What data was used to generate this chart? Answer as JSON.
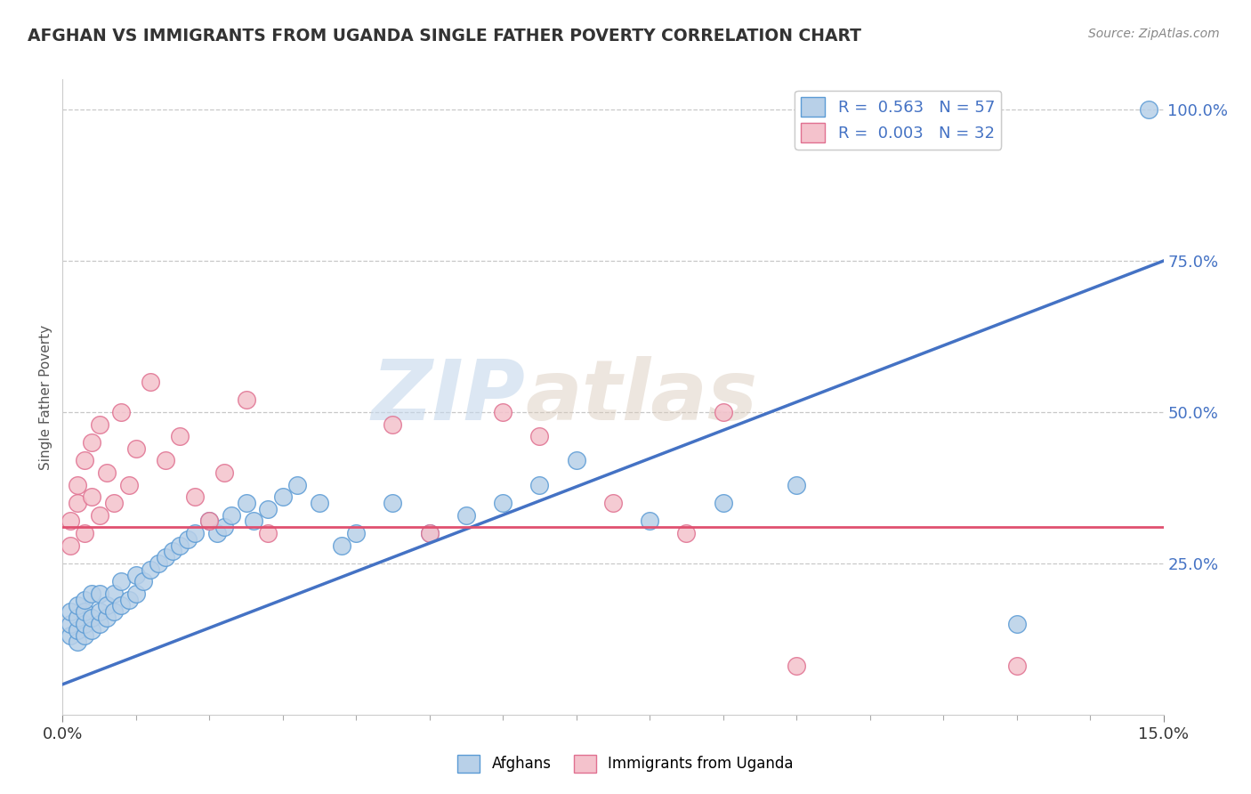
{
  "title": "AFGHAN VS IMMIGRANTS FROM UGANDA SINGLE FATHER POVERTY CORRELATION CHART",
  "source": "Source: ZipAtlas.com",
  "ylabel": "Single Father Poverty",
  "xlim": [
    0.0,
    0.15
  ],
  "ylim": [
    0.0,
    1.05
  ],
  "xticks": [
    0.0,
    0.15
  ],
  "xticklabels": [
    "0.0%",
    "15.0%"
  ],
  "yticks": [
    0.25,
    0.5,
    0.75,
    1.0
  ],
  "yticklabels": [
    "25.0%",
    "50.0%",
    "75.0%",
    "100.0%"
  ],
  "afghan_color": "#b8d0e8",
  "afghan_edge_color": "#5b9bd5",
  "uganda_color": "#f4c2cc",
  "uganda_edge_color": "#e07090",
  "afghan_R": 0.563,
  "afghan_N": 57,
  "uganda_R": 0.003,
  "uganda_N": 32,
  "afghan_line_color": "#4472c4",
  "uganda_line_color": "#e05070",
  "grid_color": "#c8c8c8",
  "background_color": "#ffffff",
  "watermark_zip": "ZIP",
  "watermark_atlas": "atlas",
  "legend_color": "#4472c4",
  "afghan_scatter_x": [
    0.001,
    0.001,
    0.001,
    0.002,
    0.002,
    0.002,
    0.002,
    0.003,
    0.003,
    0.003,
    0.003,
    0.004,
    0.004,
    0.004,
    0.005,
    0.005,
    0.005,
    0.006,
    0.006,
    0.007,
    0.007,
    0.008,
    0.008,
    0.009,
    0.01,
    0.01,
    0.011,
    0.012,
    0.013,
    0.014,
    0.015,
    0.016,
    0.017,
    0.018,
    0.02,
    0.021,
    0.022,
    0.023,
    0.025,
    0.026,
    0.028,
    0.03,
    0.032,
    0.035,
    0.038,
    0.04,
    0.045,
    0.05,
    0.055,
    0.06,
    0.065,
    0.07,
    0.08,
    0.09,
    0.1,
    0.13,
    0.148
  ],
  "afghan_scatter_y": [
    0.13,
    0.15,
    0.17,
    0.12,
    0.14,
    0.16,
    0.18,
    0.13,
    0.15,
    0.17,
    0.19,
    0.14,
    0.16,
    0.2,
    0.15,
    0.17,
    0.2,
    0.16,
    0.18,
    0.17,
    0.2,
    0.18,
    0.22,
    0.19,
    0.2,
    0.23,
    0.22,
    0.24,
    0.25,
    0.26,
    0.27,
    0.28,
    0.29,
    0.3,
    0.32,
    0.3,
    0.31,
    0.33,
    0.35,
    0.32,
    0.34,
    0.36,
    0.38,
    0.35,
    0.28,
    0.3,
    0.35,
    0.3,
    0.33,
    0.35,
    0.38,
    0.42,
    0.32,
    0.35,
    0.38,
    0.15,
    1.0
  ],
  "uganda_scatter_x": [
    0.001,
    0.001,
    0.002,
    0.002,
    0.003,
    0.003,
    0.004,
    0.004,
    0.005,
    0.005,
    0.006,
    0.007,
    0.008,
    0.009,
    0.01,
    0.012,
    0.014,
    0.016,
    0.018,
    0.02,
    0.022,
    0.025,
    0.028,
    0.045,
    0.05,
    0.06,
    0.065,
    0.075,
    0.085,
    0.09,
    0.1,
    0.13
  ],
  "uganda_scatter_y": [
    0.28,
    0.32,
    0.35,
    0.38,
    0.3,
    0.42,
    0.36,
    0.45,
    0.33,
    0.48,
    0.4,
    0.35,
    0.5,
    0.38,
    0.44,
    0.55,
    0.42,
    0.46,
    0.36,
    0.32,
    0.4,
    0.52,
    0.3,
    0.48,
    0.3,
    0.5,
    0.46,
    0.35,
    0.3,
    0.5,
    0.08,
    0.08
  ],
  "afghan_line_endpoints": [
    [
      0.0,
      0.05
    ],
    [
      0.15,
      0.75
    ]
  ],
  "uganda_line_endpoints": [
    [
      0.0,
      0.31
    ],
    [
      0.15,
      0.31
    ]
  ]
}
